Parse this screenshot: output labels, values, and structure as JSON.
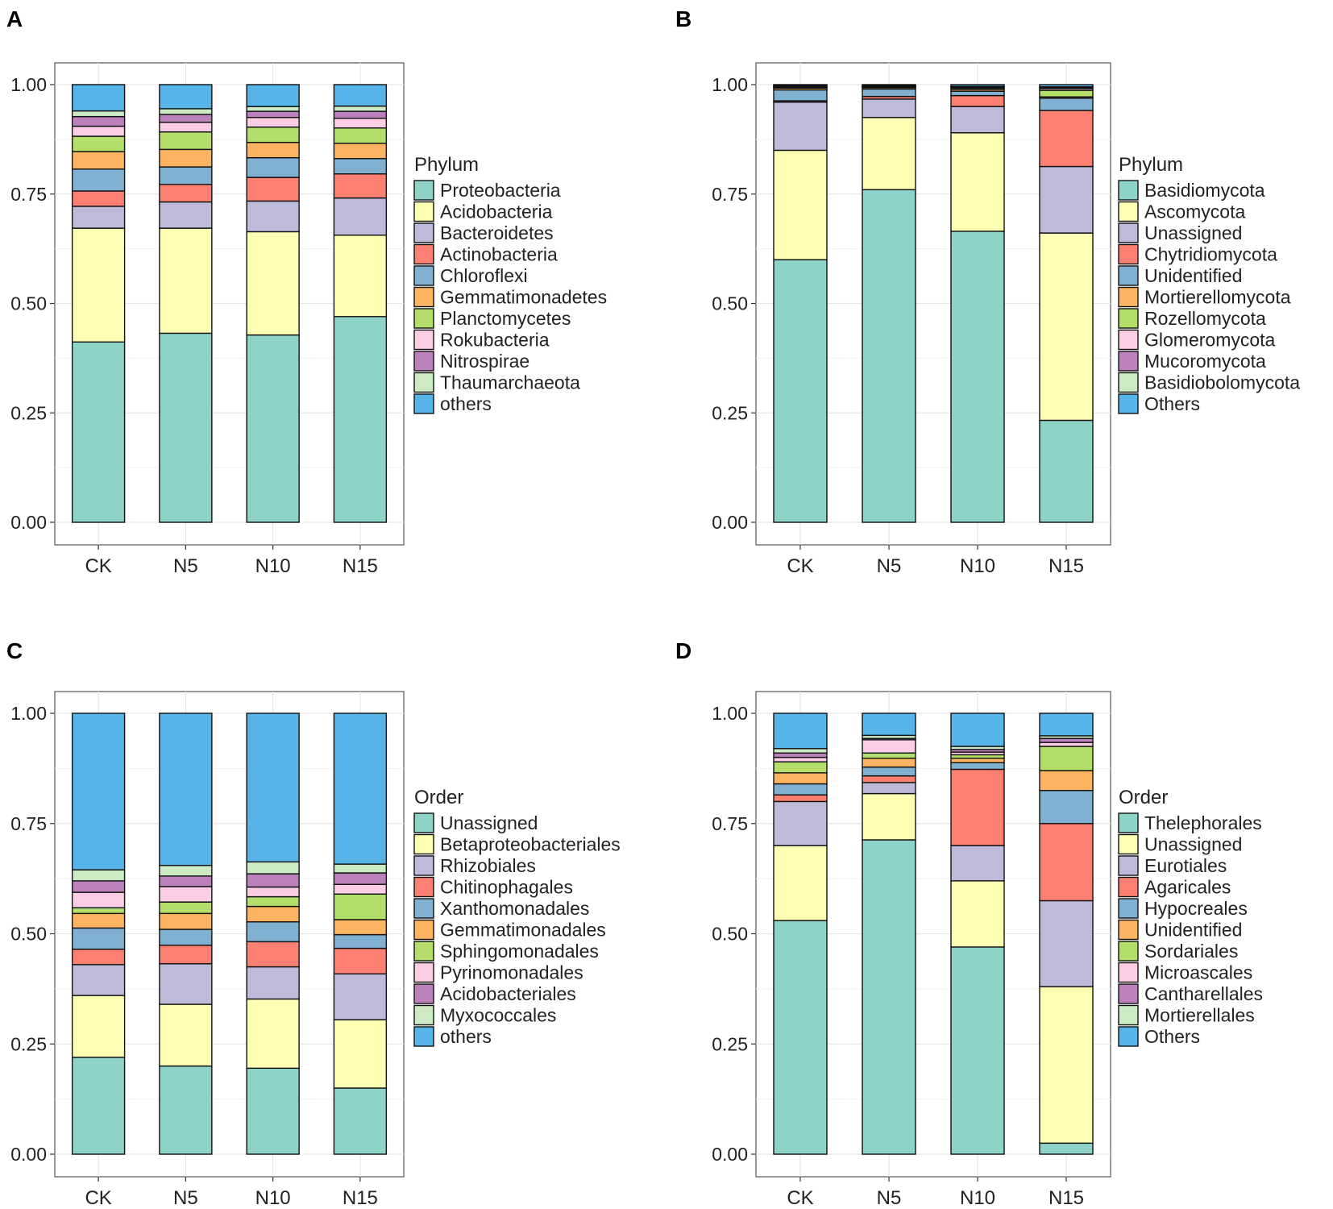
{
  "colors": [
    "#8dd3c7",
    "#ffffb3",
    "#bebada",
    "#fb8072",
    "#80b1d3",
    "#fdb462",
    "#b3de69",
    "#fccde5",
    "#bc80bd",
    "#ccebc5",
    "#56b4e9"
  ],
  "chart_data": [
    {
      "panel": "A",
      "type": "bar",
      "stacked": true,
      "categories": [
        "CK",
        "N5",
        "N10",
        "N15"
      ],
      "ylim": [
        0,
        1.0
      ],
      "yticks": [
        "0.00",
        "0.25",
        "0.50",
        "0.75",
        "1.00"
      ],
      "legend_title": "Phylum",
      "series": [
        {
          "name": "Proteobacteria",
          "values": [
            0.412,
            0.432,
            0.428,
            0.47
          ]
        },
        {
          "name": "Acidobacteria",
          "values": [
            0.26,
            0.24,
            0.236,
            0.186
          ]
        },
        {
          "name": "Bacteroidetes",
          "values": [
            0.05,
            0.06,
            0.07,
            0.085
          ]
        },
        {
          "name": "Actinobacteria",
          "values": [
            0.035,
            0.04,
            0.054,
            0.055
          ]
        },
        {
          "name": "Chloroflexi",
          "values": [
            0.05,
            0.04,
            0.045,
            0.035
          ]
        },
        {
          "name": "Gemmatimonadetes",
          "values": [
            0.04,
            0.04,
            0.035,
            0.035
          ]
        },
        {
          "name": "Planctomycetes",
          "values": [
            0.035,
            0.04,
            0.035,
            0.035
          ]
        },
        {
          "name": "Rokubacteria",
          "values": [
            0.023,
            0.022,
            0.022,
            0.022
          ]
        },
        {
          "name": "Nitrospirae",
          "values": [
            0.022,
            0.018,
            0.014,
            0.016
          ]
        },
        {
          "name": "Thaumarchaeota",
          "values": [
            0.013,
            0.013,
            0.011,
            0.012
          ]
        },
        {
          "name": "others",
          "values": [
            0.06,
            0.055,
            0.05,
            0.049
          ]
        }
      ]
    },
    {
      "panel": "B",
      "type": "bar",
      "stacked": true,
      "categories": [
        "CK",
        "N5",
        "N10",
        "N15"
      ],
      "ylim": [
        0,
        1.0
      ],
      "yticks": [
        "0.00",
        "0.25",
        "0.50",
        "0.75",
        "1.00"
      ],
      "legend_title": "Phylum",
      "series": [
        {
          "name": "Basidiomycota",
          "values": [
            0.6,
            0.76,
            0.665,
            0.233
          ]
        },
        {
          "name": "Ascomycota",
          "values": [
            0.25,
            0.165,
            0.225,
            0.428
          ]
        },
        {
          "name": "Unassigned",
          "values": [
            0.11,
            0.042,
            0.06,
            0.152
          ]
        },
        {
          "name": "Chytridiomycota",
          "values": [
            0.003,
            0.006,
            0.025,
            0.128
          ]
        },
        {
          "name": "Unidentified",
          "values": [
            0.025,
            0.017,
            0.01,
            0.028
          ]
        },
        {
          "name": "Mortierellomycota",
          "values": [
            0.004,
            0.003,
            0.004,
            0.003
          ]
        },
        {
          "name": "Rozellomycota",
          "values": [
            0.002,
            0.002,
            0.003,
            0.015
          ]
        },
        {
          "name": "Glomeromycota",
          "values": [
            0.002,
            0.001,
            0.002,
            0.004
          ]
        },
        {
          "name": "Mucoromycota",
          "values": [
            0.001,
            0.001,
            0.001,
            0.002
          ]
        },
        {
          "name": "Basidiobolomycota",
          "values": [
            0.001,
            0.001,
            0.001,
            0.002
          ]
        },
        {
          "name": "Others",
          "values": [
            0.002,
            0.002,
            0.004,
            0.005
          ]
        }
      ]
    },
    {
      "panel": "C",
      "type": "bar",
      "stacked": true,
      "categories": [
        "CK",
        "N5",
        "N10",
        "N15"
      ],
      "ylim": [
        0,
        1.0
      ],
      "yticks": [
        "0.00",
        "0.25",
        "0.50",
        "0.75",
        "1.00"
      ],
      "legend_title": "Order",
      "series": [
        {
          "name": "Unassigned",
          "values": [
            0.22,
            0.2,
            0.195,
            0.15
          ]
        },
        {
          "name": "Betaproteobacteriales",
          "values": [
            0.14,
            0.14,
            0.157,
            0.155
          ]
        },
        {
          "name": "Rhizobiales",
          "values": [
            0.07,
            0.092,
            0.073,
            0.104
          ]
        },
        {
          "name": "Chitinophagales",
          "values": [
            0.035,
            0.042,
            0.057,
            0.058
          ]
        },
        {
          "name": "Xanthomonadales",
          "values": [
            0.048,
            0.036,
            0.045,
            0.031
          ]
        },
        {
          "name": "Gemmatimonadales",
          "values": [
            0.033,
            0.036,
            0.035,
            0.034
          ]
        },
        {
          "name": "Sphingomonadales",
          "values": [
            0.013,
            0.026,
            0.022,
            0.058
          ]
        },
        {
          "name": "Pyrinomonadales",
          "values": [
            0.035,
            0.035,
            0.022,
            0.022
          ]
        },
        {
          "name": "Acidobacteriales",
          "values": [
            0.026,
            0.024,
            0.03,
            0.026
          ]
        },
        {
          "name": "Myxococcales",
          "values": [
            0.025,
            0.024,
            0.027,
            0.02
          ]
        },
        {
          "name": "others",
          "values": [
            0.355,
            0.345,
            0.337,
            0.342
          ]
        }
      ]
    },
    {
      "panel": "D",
      "type": "bar",
      "stacked": true,
      "categories": [
        "CK",
        "N5",
        "N10",
        "N15"
      ],
      "ylim": [
        0,
        1.0
      ],
      "yticks": [
        "0.00",
        "0.25",
        "0.50",
        "0.75",
        "1.00"
      ],
      "legend_title": "Order",
      "series": [
        {
          "name": "Thelephorales",
          "values": [
            0.53,
            0.713,
            0.47,
            0.025
          ]
        },
        {
          "name": "Unassigned",
          "values": [
            0.17,
            0.105,
            0.15,
            0.355
          ]
        },
        {
          "name": "Eurotiales",
          "values": [
            0.1,
            0.025,
            0.08,
            0.195
          ]
        },
        {
          "name": "Agaricales",
          "values": [
            0.015,
            0.015,
            0.173,
            0.175
          ]
        },
        {
          "name": "Hypocreales",
          "values": [
            0.025,
            0.02,
            0.015,
            0.075
          ]
        },
        {
          "name": "Unidentified",
          "values": [
            0.025,
            0.02,
            0.01,
            0.045
          ]
        },
        {
          "name": "Sordariales",
          "values": [
            0.025,
            0.012,
            0.008,
            0.055
          ]
        },
        {
          "name": "Microascales",
          "values": [
            0.01,
            0.03,
            0.006,
            0.009
          ]
        },
        {
          "name": "Cantharellales",
          "values": [
            0.01,
            0.003,
            0.006,
            0.009
          ]
        },
        {
          "name": "Mortierellales",
          "values": [
            0.01,
            0.007,
            0.007,
            0.006
          ]
        },
        {
          "name": "Others",
          "values": [
            0.08,
            0.05,
            0.075,
            0.051
          ]
        }
      ]
    }
  ]
}
